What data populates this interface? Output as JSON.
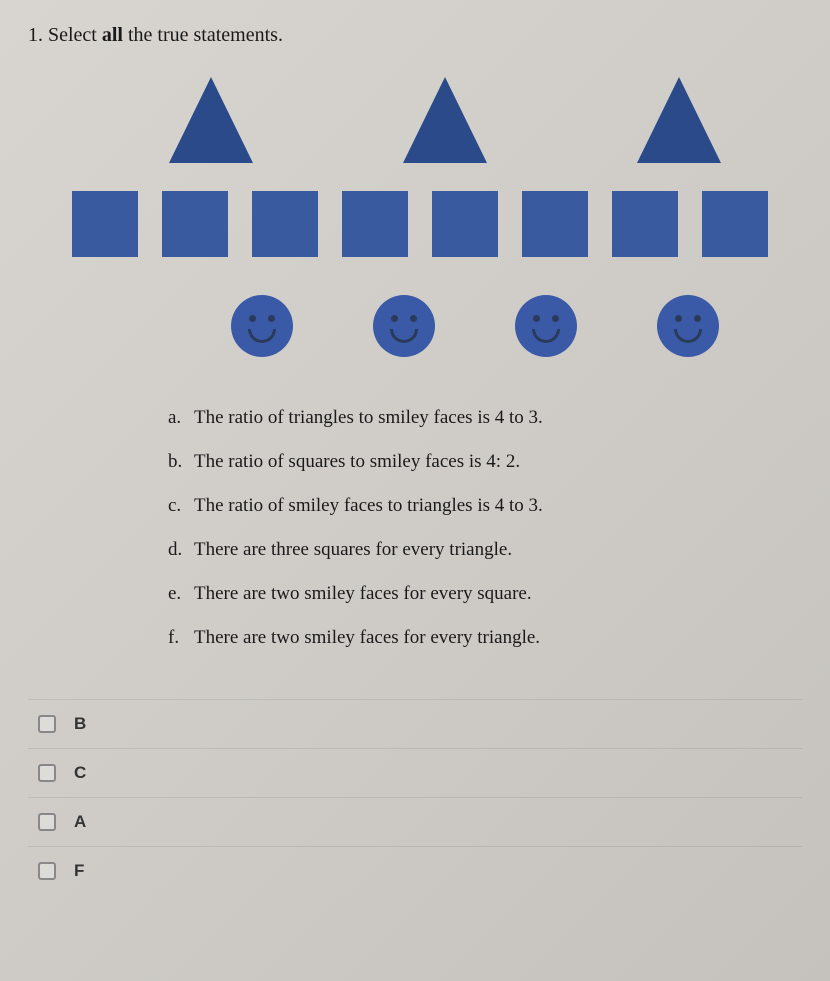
{
  "question": {
    "number": "1.",
    "prompt_prefix": "Select ",
    "prompt_bold": "all",
    "prompt_suffix": " the true statements."
  },
  "shapes": {
    "triangle_color": "#2a4a8a",
    "square_color": "#3a5aa0",
    "smiley_color": "#3a5aa8",
    "triangle_count": 3,
    "square_count": 8,
    "smiley_count": 4
  },
  "statements": [
    {
      "letter": "a.",
      "text": "The ratio of triangles to smiley faces is 4 to 3."
    },
    {
      "letter": "b.",
      "text": "The ratio of squares to smiley faces is 4: 2."
    },
    {
      "letter": "c.",
      "text": "The ratio of smiley faces to triangles is 4 to 3."
    },
    {
      "letter": "d.",
      "text": "There are three squares for every triangle."
    },
    {
      "letter": "e.",
      "text": "There are two smiley faces for every square."
    },
    {
      "letter": "f.",
      "text": "There are two smiley faces for every triangle."
    }
  ],
  "options": [
    {
      "label": "B"
    },
    {
      "label": "C"
    },
    {
      "label": "A"
    },
    {
      "label": "F"
    }
  ]
}
